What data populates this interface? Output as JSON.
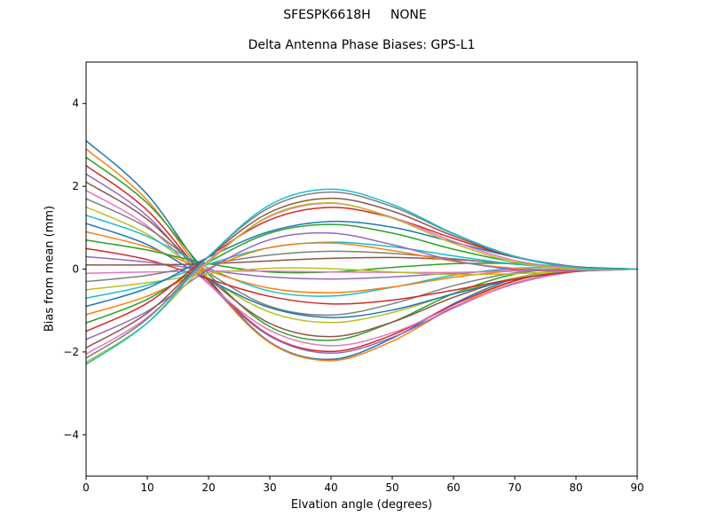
{
  "figure": {
    "suptitle": "SFESPK6618H     NONE",
    "background": "#ffffff",
    "axis_color": "#000000"
  },
  "chart_data": {
    "type": "line",
    "title": "Delta Antenna Phase Biases: GPS-L1",
    "xlabel": "Elvation angle (degrees)",
    "ylabel": "Bias from mean (mm)",
    "xlim": [
      0,
      90
    ],
    "ylim": [
      -5,
      5
    ],
    "xticks": [
      0,
      10,
      20,
      30,
      40,
      50,
      60,
      70,
      80,
      90
    ],
    "yticks": [
      -4,
      -2,
      0,
      2,
      4
    ],
    "grid": false,
    "legend": null,
    "x": [
      0,
      10,
      20,
      30,
      40,
      50,
      60,
      70,
      80,
      90
    ],
    "series": [
      {
        "color": "#1f77b4",
        "values": [
          3.1,
          1.8,
          -0.23,
          -1.76,
          -2.18,
          -1.67,
          -0.84,
          -0.23,
          0,
          0
        ]
      },
      {
        "color": "#ff7f0e",
        "values": [
          2.9,
          1.66,
          -0.29,
          -1.78,
          -2.21,
          -1.74,
          -0.92,
          -0.29,
          -0.02,
          0
        ]
      },
      {
        "color": "#2ca02c",
        "values": [
          2.7,
          1.59,
          -0.12,
          -1.39,
          -1.72,
          -1.28,
          -0.59,
          -0.12,
          0.02,
          0
        ]
      },
      {
        "color": "#d62728",
        "values": [
          2.5,
          1.42,
          -0.29,
          -1.6,
          -1.99,
          -1.59,
          -0.86,
          -0.28,
          -0.03,
          0
        ]
      },
      {
        "color": "#9467bd",
        "values": [
          2.3,
          1.28,
          -0.35,
          -1.62,
          -2.03,
          -1.65,
          -0.94,
          -0.34,
          -0.05,
          0
        ]
      },
      {
        "color": "#8c564b",
        "values": [
          2.1,
          1.2,
          -0.22,
          -1.31,
          -1.63,
          -1.28,
          -0.68,
          -0.22,
          -0.02,
          0
        ]
      },
      {
        "color": "#e377c2",
        "values": [
          1.9,
          1.04,
          -0.36,
          -1.48,
          -1.85,
          -1.54,
          -0.91,
          -0.36,
          -0.06,
          0
        ]
      },
      {
        "color": "#7f7f7f",
        "values": [
          1.7,
          1.0,
          -0.09,
          -0.9,
          -1.11,
          -0.84,
          -0.4,
          -0.09,
          0.01,
          0
        ]
      },
      {
        "color": "#bcbd22",
        "values": [
          1.5,
          0.84,
          -0.21,
          -1.04,
          -1.29,
          -1.05,
          -0.59,
          -0.21,
          -0.03,
          0
        ]
      },
      {
        "color": "#17becf",
        "values": [
          1.3,
          0.79,
          0.02,
          -0.53,
          -0.65,
          -0.44,
          -0.15,
          0.02,
          0.03,
          0
        ]
      },
      {
        "color": "#1f77b4",
        "values": [
          1.1,
          0.59,
          -0.25,
          -0.93,
          -1.17,
          -0.99,
          -0.6,
          -0.25,
          -0.05,
          0
        ]
      },
      {
        "color": "#ff7f0e",
        "values": [
          0.9,
          0.53,
          -0.04,
          -0.46,
          -0.57,
          -0.43,
          -0.2,
          -0.04,
          0.01,
          0
        ]
      },
      {
        "color": "#2ca02c",
        "values": [
          0.7,
          0.46,
          0.13,
          -0.07,
          -0.07,
          0.04,
          0.13,
          0.13,
          0.05,
          0
        ]
      },
      {
        "color": "#d62728",
        "values": [
          0.5,
          0.23,
          -0.24,
          -0.66,
          -0.84,
          -0.75,
          -0.51,
          -0.24,
          -0.06,
          0
        ]
      },
      {
        "color": "#9467bd",
        "values": [
          0.3,
          0.17,
          -0.03,
          -0.19,
          -0.24,
          -0.19,
          -0.1,
          -0.03,
          0,
          0
        ]
      },
      {
        "color": "#8c564b",
        "values": [
          0.1,
          0.1,
          0.13,
          0.2,
          0.26,
          0.28,
          0.23,
          0.13,
          0.04,
          0
        ]
      },
      {
        "color": "#e377c2",
        "values": [
          -0.1,
          -0.07,
          -0.05,
          -0.05,
          -0.07,
          -0.08,
          -0.08,
          -0.05,
          -0.02,
          0
        ]
      },
      {
        "color": "#7f7f7f",
        "values": [
          -0.3,
          -0.15,
          0.12,
          0.34,
          0.43,
          0.38,
          0.25,
          0.12,
          0.03,
          0
        ]
      },
      {
        "color": "#bcbd22",
        "values": [
          -0.5,
          -0.33,
          -0.11,
          0.02,
          0.01,
          -0.07,
          -0.13,
          -0.11,
          -0.04,
          0
        ]
      },
      {
        "color": "#17becf",
        "values": [
          -0.7,
          -0.39,
          0.12,
          0.52,
          0.65,
          0.54,
          0.32,
          0.12,
          0.02,
          0
        ]
      },
      {
        "color": "#1f77b4",
        "values": [
          -0.9,
          -0.46,
          0.29,
          0.91,
          1.15,
          1.01,
          0.65,
          0.29,
          0.06,
          0
        ]
      },
      {
        "color": "#ff7f0e",
        "values": [
          -1.1,
          -0.65,
          0.02,
          0.52,
          0.63,
          0.45,
          0.19,
          0.02,
          -0.02,
          0
        ]
      },
      {
        "color": "#2ca02c",
        "values": [
          -1.3,
          -0.73,
          0.17,
          0.87,
          1.08,
          0.87,
          0.48,
          0.17,
          0.02,
          0
        ]
      },
      {
        "color": "#d62728",
        "values": [
          -1.5,
          -0.82,
          0.3,
          1.19,
          1.49,
          1.24,
          0.74,
          0.29,
          0.05,
          0
        ]
      },
      {
        "color": "#9467bd",
        "values": [
          -1.7,
          -1.02,
          -0.01,
          0.71,
          0.87,
          0.59,
          0.21,
          -0.01,
          -0.04,
          0
        ]
      },
      {
        "color": "#8c564b",
        "values": [
          -1.9,
          -1.06,
          0.3,
          1.37,
          1.71,
          1.4,
          0.8,
          0.3,
          0.05,
          0
        ]
      },
      {
        "color": "#e377c2",
        "values": [
          -2.05,
          -1.17,
          0.21,
          1.27,
          1.59,
          1.25,
          0.67,
          0.21,
          0.02,
          0
        ]
      },
      {
        "color": "#7f7f7f",
        "values": [
          -2.15,
          -1.2,
          0.31,
          1.49,
          1.86,
          1.51,
          0.85,
          0.31,
          0.04,
          0
        ]
      },
      {
        "color": "#bcbd22",
        "values": [
          -2.25,
          -1.3,
          0.17,
          1.29,
          1.6,
          1.23,
          0.62,
          0.17,
          0,
          0
        ]
      },
      {
        "color": "#17becf",
        "values": [
          -2.3,
          -1.3,
          0.3,
          1.55,
          1.93,
          1.56,
          0.86,
          0.3,
          0.04,
          0
        ]
      }
    ]
  }
}
